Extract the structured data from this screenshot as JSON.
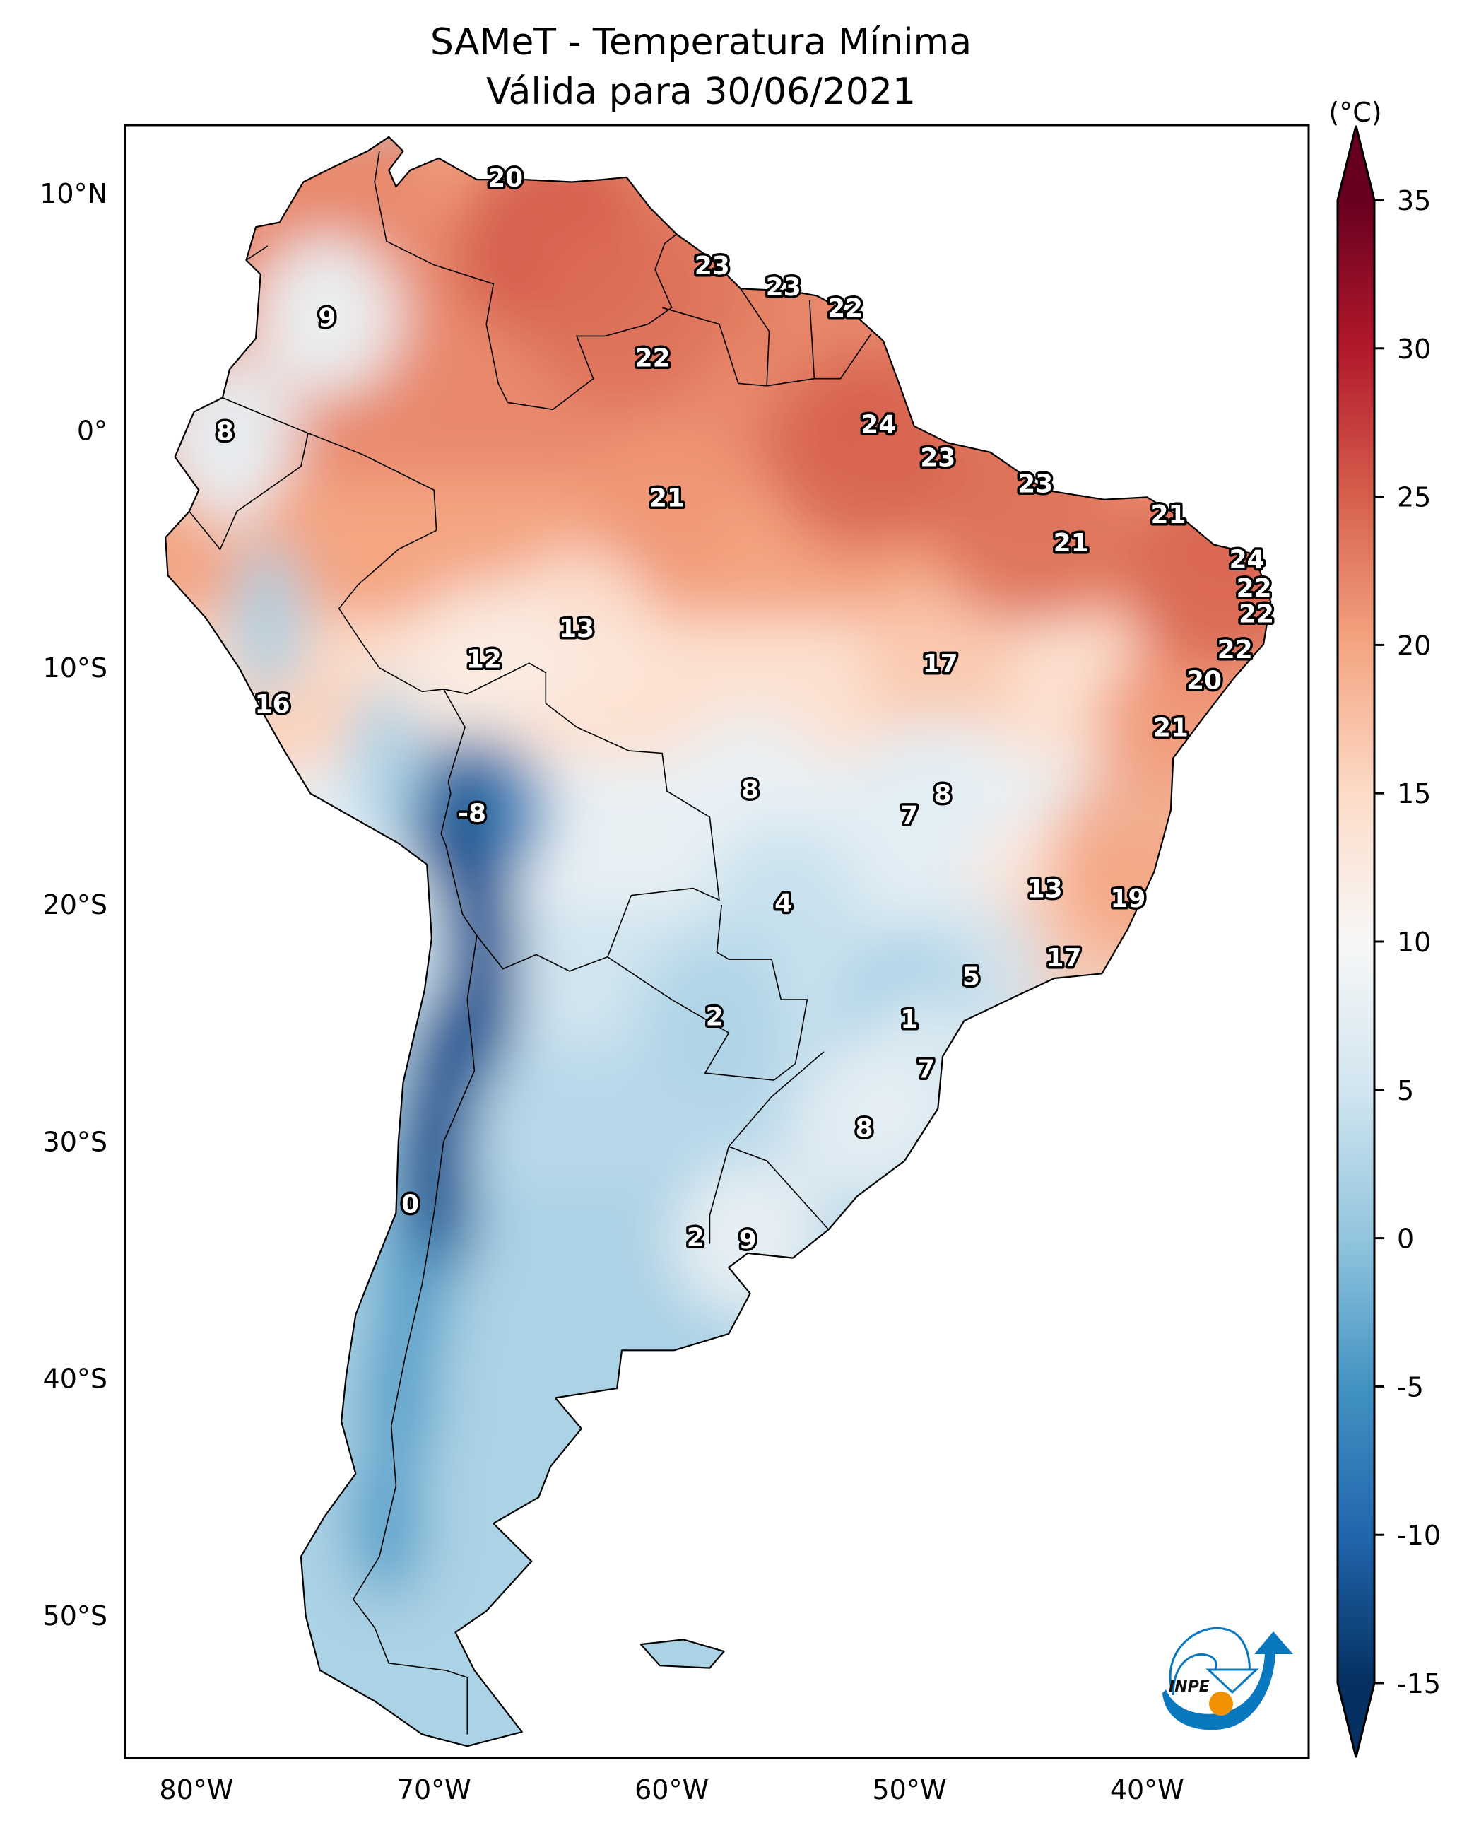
{
  "chart_data": {
    "type": "heatmap",
    "title": "SAMeT - Temperatura Mínima",
    "subtitle": "Válida para 30/06/2021",
    "colorbar": {
      "unit_label": "(°C)",
      "min": -15,
      "max": 35,
      "ticks": [
        35,
        30,
        25,
        20,
        15,
        10,
        5,
        0,
        -5,
        -10,
        -15
      ],
      "tick_labels": [
        "35",
        "30",
        "25",
        "20",
        "15",
        "10",
        "5",
        "0",
        "-5",
        "-10",
        "-15"
      ],
      "extend": "both",
      "colormap": "RdBu_r",
      "stops": [
        {
          "value": -15,
          "color": "#053061"
        },
        {
          "value": -10,
          "color": "#2166ac"
        },
        {
          "value": -5,
          "color": "#4393c3"
        },
        {
          "value": 0,
          "color": "#92c5de"
        },
        {
          "value": 5,
          "color": "#d1e5f0"
        },
        {
          "value": 10,
          "color": "#f7f7f7"
        },
        {
          "value": 15,
          "color": "#fddbc7"
        },
        {
          "value": 20,
          "color": "#f4a582"
        },
        {
          "value": 25,
          "color": "#d6604d"
        },
        {
          "value": 30,
          "color": "#b2182b"
        },
        {
          "value": 35,
          "color": "#67001f"
        }
      ]
    },
    "x_axis": {
      "ticks": [
        -80,
        -70,
        -60,
        -50,
        -40
      ],
      "tick_labels": [
        "80°W",
        "70°W",
        "60°W",
        "50°W",
        "40°W"
      ],
      "range": [
        -83,
        -33.2
      ]
    },
    "y_axis": {
      "ticks": [
        10,
        0,
        -10,
        -20,
        -30,
        -40,
        -50
      ],
      "tick_labels": [
        "10°N",
        "0°",
        "10°S",
        "20°S",
        "30°S",
        "40°S",
        "50°S"
      ],
      "range": [
        -56,
        12.9
      ]
    },
    "grid": false,
    "point_labels": [
      {
        "lon": -67.0,
        "lat": 10.7,
        "value": "20"
      },
      {
        "lon": -74.5,
        "lat": 4.8,
        "value": "9"
      },
      {
        "lon": -78.8,
        "lat": 0.0,
        "value": "8"
      },
      {
        "lon": -58.3,
        "lat": 7.0,
        "value": "23"
      },
      {
        "lon": -55.3,
        "lat": 6.1,
        "value": "23"
      },
      {
        "lon": -52.7,
        "lat": 5.2,
        "value": "22"
      },
      {
        "lon": -60.8,
        "lat": 3.1,
        "value": "22"
      },
      {
        "lon": -51.3,
        "lat": 0.3,
        "value": "24"
      },
      {
        "lon": -60.2,
        "lat": -2.8,
        "value": "21"
      },
      {
        "lon": -48.8,
        "lat": -1.1,
        "value": "23"
      },
      {
        "lon": -44.7,
        "lat": -2.2,
        "value": "23"
      },
      {
        "lon": -39.1,
        "lat": -3.5,
        "value": "21"
      },
      {
        "lon": -43.2,
        "lat": -4.7,
        "value": "21"
      },
      {
        "lon": -35.8,
        "lat": -5.4,
        "value": "24"
      },
      {
        "lon": -35.5,
        "lat": -6.6,
        "value": "22"
      },
      {
        "lon": -35.4,
        "lat": -7.7,
        "value": "22"
      },
      {
        "lon": -36.3,
        "lat": -9.2,
        "value": "22"
      },
      {
        "lon": -37.6,
        "lat": -10.5,
        "value": "20"
      },
      {
        "lon": -39.0,
        "lat": -12.5,
        "value": "21"
      },
      {
        "lon": -48.7,
        "lat": -9.8,
        "value": "17"
      },
      {
        "lon": -64.0,
        "lat": -8.3,
        "value": "13"
      },
      {
        "lon": -67.9,
        "lat": -9.6,
        "value": "12"
      },
      {
        "lon": -76.8,
        "lat": -11.5,
        "value": "16"
      },
      {
        "lon": -56.7,
        "lat": -15.1,
        "value": "8"
      },
      {
        "lon": -48.6,
        "lat": -15.3,
        "value": "8"
      },
      {
        "lon": -50.0,
        "lat": -16.2,
        "value": "7"
      },
      {
        "lon": -68.4,
        "lat": -16.1,
        "value": "-8"
      },
      {
        "lon": -55.3,
        "lat": -19.9,
        "value": "4"
      },
      {
        "lon": -44.3,
        "lat": -19.3,
        "value": "13"
      },
      {
        "lon": -40.8,
        "lat": -19.7,
        "value": "19"
      },
      {
        "lon": -43.5,
        "lat": -22.2,
        "value": "17"
      },
      {
        "lon": -47.4,
        "lat": -23.0,
        "value": "5"
      },
      {
        "lon": -58.2,
        "lat": -24.7,
        "value": "2"
      },
      {
        "lon": -50.0,
        "lat": -24.8,
        "value": "1"
      },
      {
        "lon": -49.3,
        "lat": -26.9,
        "value": "7"
      },
      {
        "lon": -51.9,
        "lat": -29.4,
        "value": "8"
      },
      {
        "lon": -71.0,
        "lat": -32.6,
        "value": "0"
      },
      {
        "lon": -59.0,
        "lat": -34.0,
        "value": "2"
      },
      {
        "lon": -56.8,
        "lat": -34.1,
        "value": "9"
      }
    ],
    "logo": {
      "text": "INPE",
      "colors": {
        "blue": "#0a78be",
        "orange": "#f39200"
      }
    }
  }
}
